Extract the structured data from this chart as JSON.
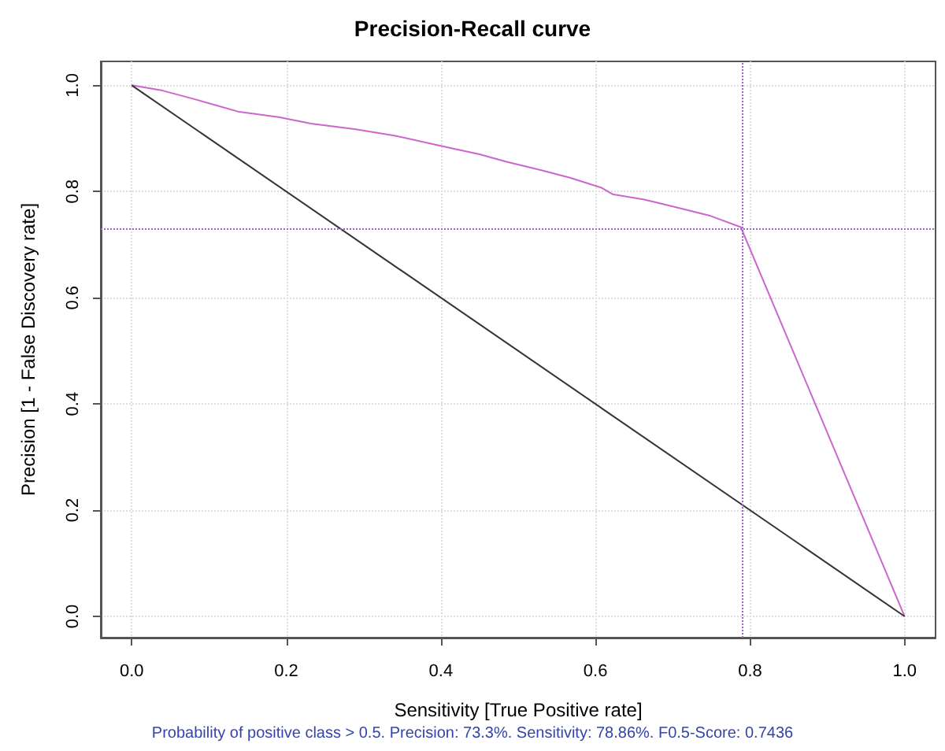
{
  "chart_data": {
    "type": "line",
    "title": "Precision-Recall curve",
    "xlabel": "Sensitivity [True Positive rate]",
    "ylabel": "Precision [1 - False Discovery rate]",
    "annotations": [
      "Probability of positive class > 0.5. Precision: 73.3%. Sensitivity: 78.86%. F0.5-Score: 0.7436"
    ],
    "series": [
      {
        "color": "#cc66cc",
        "x": [
          0,
          0.04,
          0.081,
          0.11,
          0.139,
          0.19,
          0.232,
          0.29,
          0.341,
          0.403,
          0.45,
          0.485,
          0.53,
          0.567,
          0.608,
          0.622,
          0.663,
          0.7,
          0.749,
          0.788,
          1
        ],
        "values": [
          1.0,
          0.99,
          0.974,
          0.962,
          0.95,
          0.94,
          0.928,
          0.917,
          0.905,
          0.885,
          0.87,
          0.856,
          0.84,
          0.826,
          0.807,
          0.795,
          0.785,
          0.772,
          0.754,
          0.733,
          0
        ]
      },
      {
        "color": "#333333",
        "x": [
          0,
          1
        ],
        "values": [
          1,
          0
        ]
      }
    ],
    "ref_lines": [
      {
        "axis": "x",
        "value": 0.7886,
        "color": "#9966cc",
        "line_style": "dotted"
      },
      {
        "axis": "y",
        "value": 0.733,
        "color": "#9966cc",
        "line_style": "dotted"
      }
    ],
    "xlim": [
      -0.04,
      1.04
    ],
    "xticks": [
      {
        "value": 0,
        "label": "0.0"
      },
      0.2,
      0.4,
      0.6,
      0.8,
      {
        "value": 1,
        "label": "1.0"
      }
    ],
    "ylim": [
      -0.04,
      1.045
    ],
    "yticks": [
      {
        "value": 0,
        "label": "0.0"
      },
      0.2,
      0.4,
      0.6,
      0.8,
      {
        "value": 1,
        "label": "1.0"
      }
    ],
    "grid": true,
    "marker": "none",
    "line_style": "solid"
  }
}
